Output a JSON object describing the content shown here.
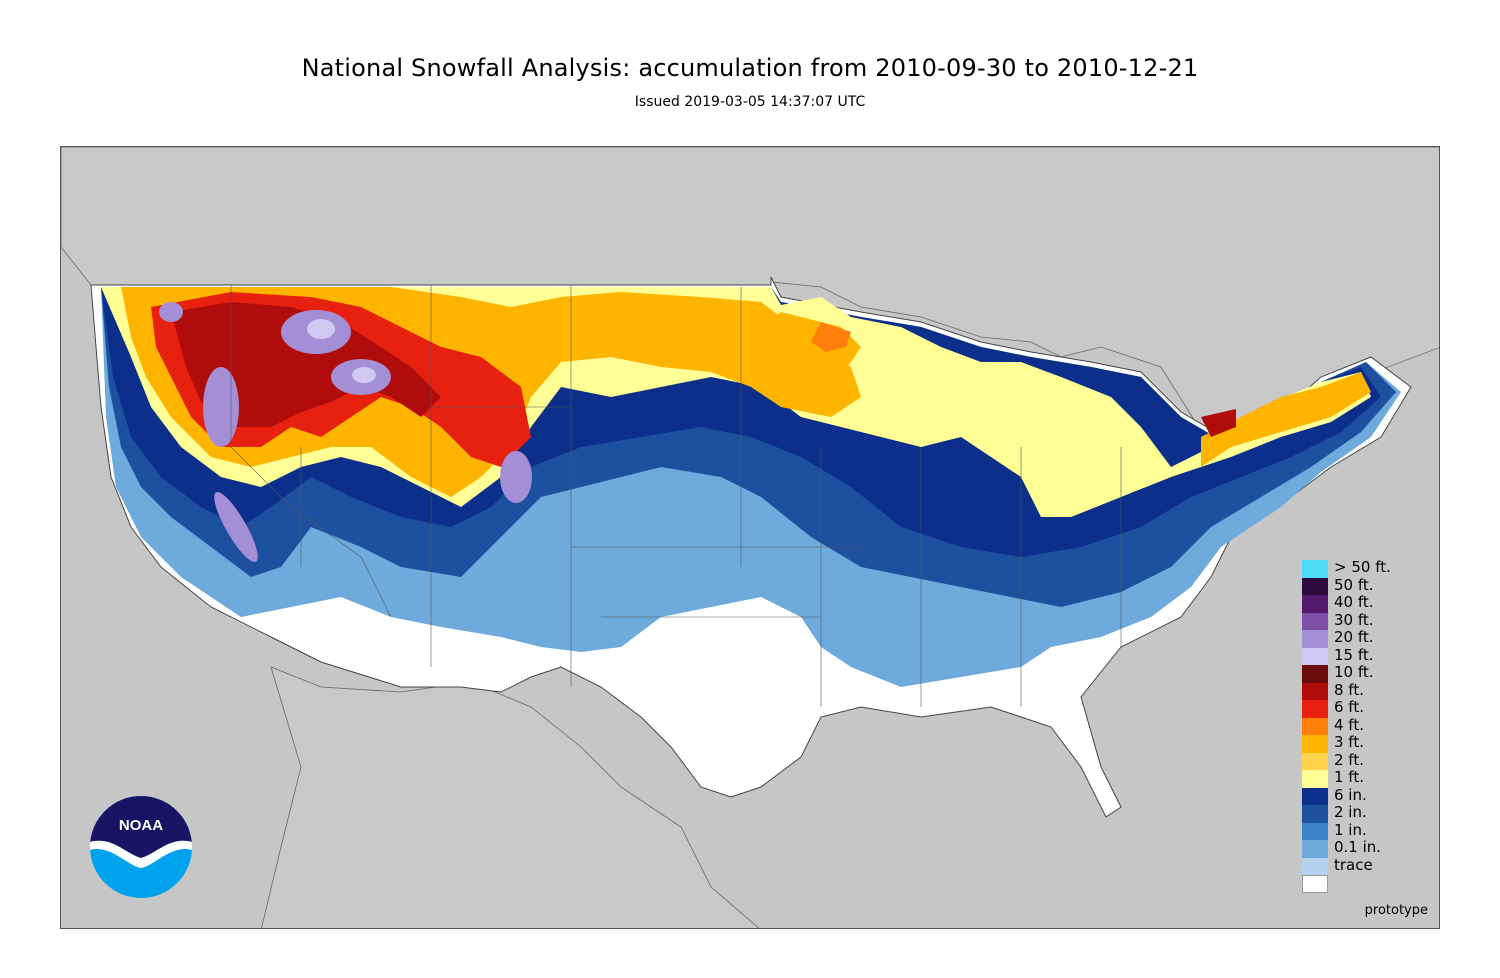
{
  "title": "National Snowfall Analysis: accumulation from 2010-09-30 to 2010-12-21",
  "subtitle": "Issued 2019-03-05 14:37:07 UTC",
  "watermark": "prototype",
  "logo": {
    "text": "NOAA",
    "icon": "noaa-logo-icon",
    "colors": {
      "dark": "#1b1464",
      "light": "#00a2ed"
    }
  },
  "map": {
    "background_color": "#c6c6c6",
    "land_outline_color": "#555555"
  },
  "legend": [
    {
      "label": "> 50 ft.",
      "color": "#4ddcf5"
    },
    {
      "label": "50 ft.",
      "color": "#2c0a3c"
    },
    {
      "label": "40 ft.",
      "color": "#541a6e"
    },
    {
      "label": "30 ft.",
      "color": "#7d4fa6"
    },
    {
      "label": "20 ft.",
      "color": "#a48fd6"
    },
    {
      "label": "15 ft.",
      "color": "#cfc8f3"
    },
    {
      "label": "10 ft.",
      "color": "#6b0c0c"
    },
    {
      "label": "8 ft.",
      "color": "#b00c0c"
    },
    {
      "label": "6 ft.",
      "color": "#e8200f"
    },
    {
      "label": "4 ft.",
      "color": "#ff7f0a"
    },
    {
      "label": "3 ft.",
      "color": "#ffb400"
    },
    {
      "label": "2 ft.",
      "color": "#ffd24c"
    },
    {
      "label": "1 ft.",
      "color": "#ffff96"
    },
    {
      "label": "6 in.",
      "color": "#0c2f8c"
    },
    {
      "label": "2 in.",
      "color": "#1e50a0"
    },
    {
      "label": "1 in.",
      "color": "#3c82c8"
    },
    {
      "label": "0.1 in.",
      "color": "#6eaadc"
    },
    {
      "label": "trace",
      "color": "#b4d2ee"
    }
  ],
  "trace_fill": "#ffffff"
}
